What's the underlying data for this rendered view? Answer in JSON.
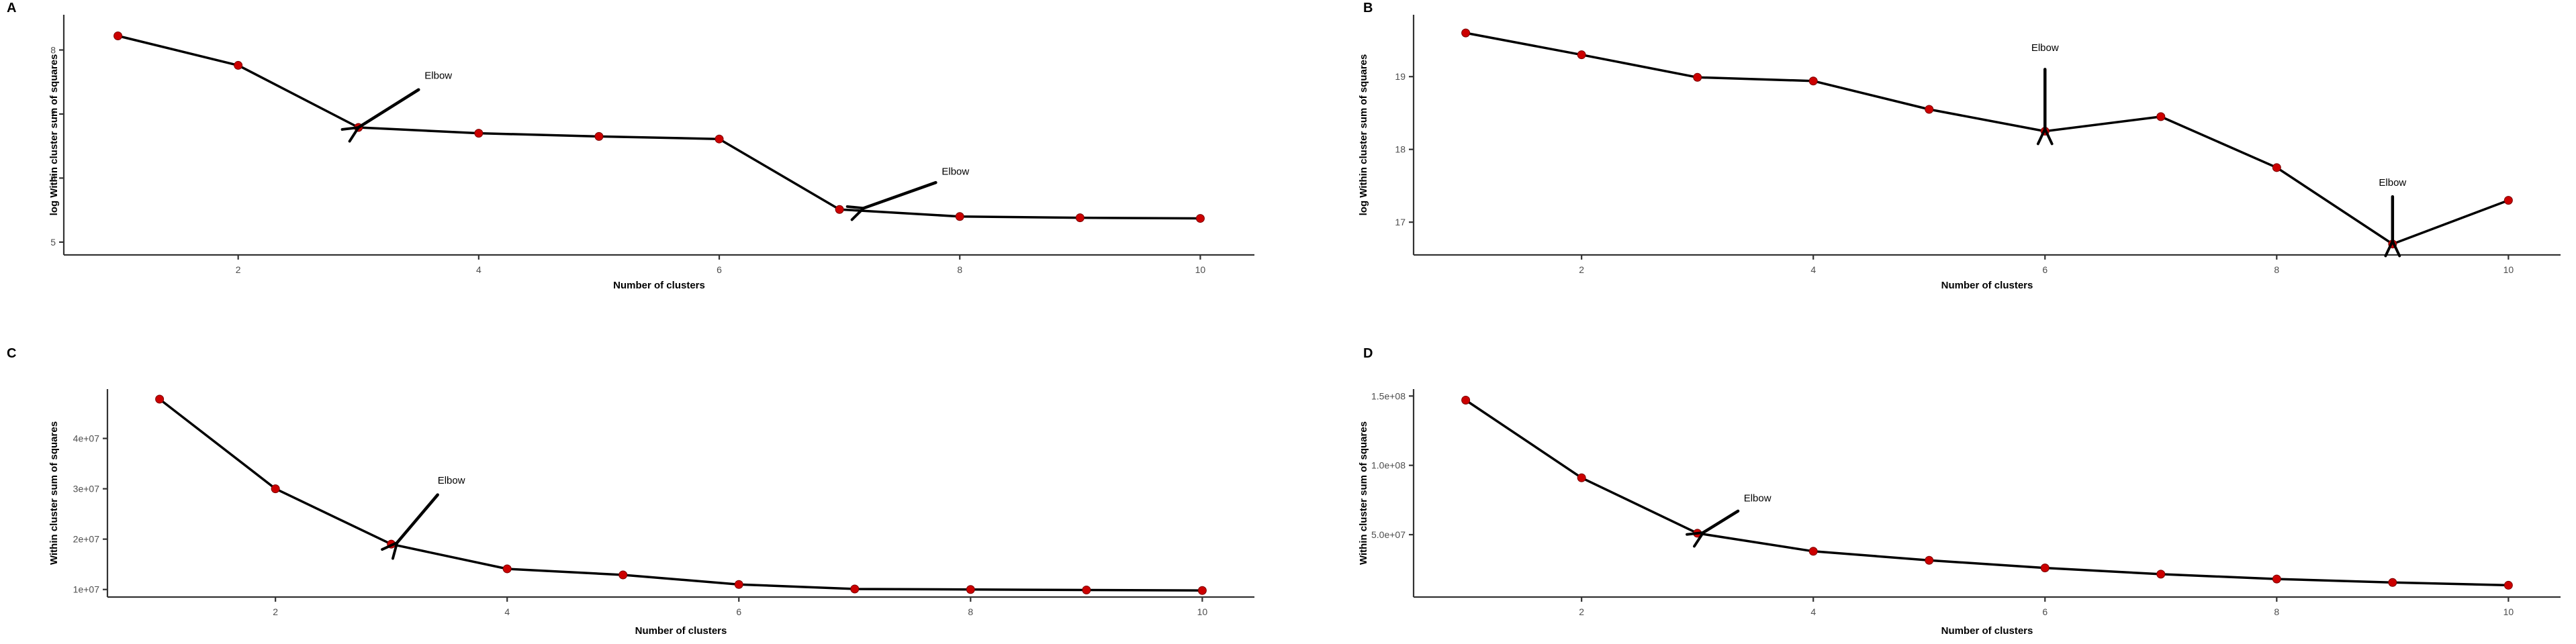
{
  "chart_data": [
    {
      "type": "line",
      "panel": "A",
      "xlabel": "Number of clusters",
      "ylabel": "log Within cluster sum of squares",
      "x": [
        1,
        2,
        3,
        4,
        5,
        6,
        7,
        8,
        9,
        10
      ],
      "series": [
        {
          "values": [
            8.22,
            7.76,
            6.79,
            6.7,
            6.65,
            6.61,
            5.51,
            5.4,
            5.38,
            5.37
          ]
        }
      ],
      "xlim": [
        0.55,
        10.45
      ],
      "ylim": [
        4.8,
        8.55
      ],
      "xticks": [
        2,
        4,
        6,
        8,
        10
      ],
      "yticks": [
        5,
        6,
        7,
        8
      ],
      "ytick_labels": [
        "5",
        "6",
        "7",
        "8"
      ],
      "grid": false,
      "annotations": [
        {
          "text": "Elbow",
          "target": [
            3,
            6.79
          ],
          "tail": [
            3.5,
            7.38
          ],
          "text_at": [
            3.55,
            7.55
          ]
        },
        {
          "text": "Elbow",
          "target": [
            7.2,
            5.53
          ],
          "tail": [
            7.8,
            5.93
          ],
          "text_at": [
            7.85,
            6.05
          ]
        }
      ]
    },
    {
      "type": "line",
      "panel": "B",
      "xlabel": "Number of clusters",
      "ylabel": "log Within cluster sum of squares",
      "x": [
        1,
        2,
        3,
        4,
        5,
        6,
        7,
        8,
        9,
        10
      ],
      "series": [
        {
          "values": [
            19.6,
            19.3,
            18.99,
            18.94,
            18.55,
            18.25,
            18.45,
            17.75,
            16.7,
            17.3
          ]
        }
      ],
      "xlim": [
        0.55,
        10.45
      ],
      "ylim": [
        16.55,
        19.85
      ],
      "xticks": [
        2,
        4,
        6,
        8,
        10
      ],
      "yticks": [
        17,
        18,
        19
      ],
      "ytick_labels": [
        "17",
        "18",
        "19"
      ],
      "grid": false,
      "annotations": [
        {
          "text": "Elbow",
          "target": [
            6,
            18.28
          ],
          "tail": [
            6,
            19.1
          ],
          "text_at": [
            6,
            19.35
          ]
        },
        {
          "text": "Elbow",
          "target": [
            9,
            16.74
          ],
          "tail": [
            9,
            17.35
          ],
          "text_at": [
            9,
            17.5
          ]
        }
      ]
    },
    {
      "type": "line",
      "panel": "C",
      "xlabel": "Number of clusters",
      "ylabel": "Within cluster sum of squares",
      "x": [
        1,
        2,
        3,
        4,
        5,
        6,
        7,
        8,
        9,
        10
      ],
      "series": [
        {
          "values": [
            47800000,
            30000000,
            19000000,
            14100000,
            12900000,
            11000000,
            10100000,
            10000000,
            9900000,
            9800000
          ]
        }
      ],
      "xlim": [
        0.55,
        10.45
      ],
      "ylim": [
        8500000,
        49800000
      ],
      "xticks": [
        2,
        4,
        6,
        8,
        10
      ],
      "yticks": [
        10000000,
        20000000,
        30000000,
        40000000
      ],
      "ytick_labels": [
        "1e+07",
        "2e+07",
        "3e+07",
        "4e+07"
      ],
      "grid": false,
      "annotations": [
        {
          "text": "Elbow",
          "target": [
            3.05,
            19300000
          ],
          "tail": [
            3.4,
            28800000
          ],
          "text_at": [
            3.4,
            31000000
          ]
        }
      ]
    },
    {
      "type": "line",
      "panel": "D",
      "xlabel": "Number of clusters",
      "ylabel": "Within cluster sum of squares",
      "x": [
        1,
        2,
        3,
        4,
        5,
        6,
        7,
        8,
        9,
        10
      ],
      "series": [
        {
          "values": [
            147000000,
            91000000,
            51000000,
            38000000,
            31500000,
            26000000,
            21500000,
            18000000,
            15500000,
            13500000
          ]
        }
      ],
      "xlim": [
        0.55,
        10.45
      ],
      "ylim": [
        5000000,
        155000000
      ],
      "xticks": [
        2,
        4,
        6,
        8,
        10
      ],
      "yticks": [
        50000000,
        100000000,
        150000000
      ],
      "ytick_labels": [
        "5.0e+07",
        "1.0e+08",
        "1.5e+08"
      ],
      "grid": false,
      "annotations": [
        {
          "text": "Elbow",
          "target": [
            3.05,
            51500000
          ],
          "tail": [
            3.35,
            67000000
          ],
          "text_at": [
            3.4,
            74000000
          ]
        }
      ]
    }
  ]
}
